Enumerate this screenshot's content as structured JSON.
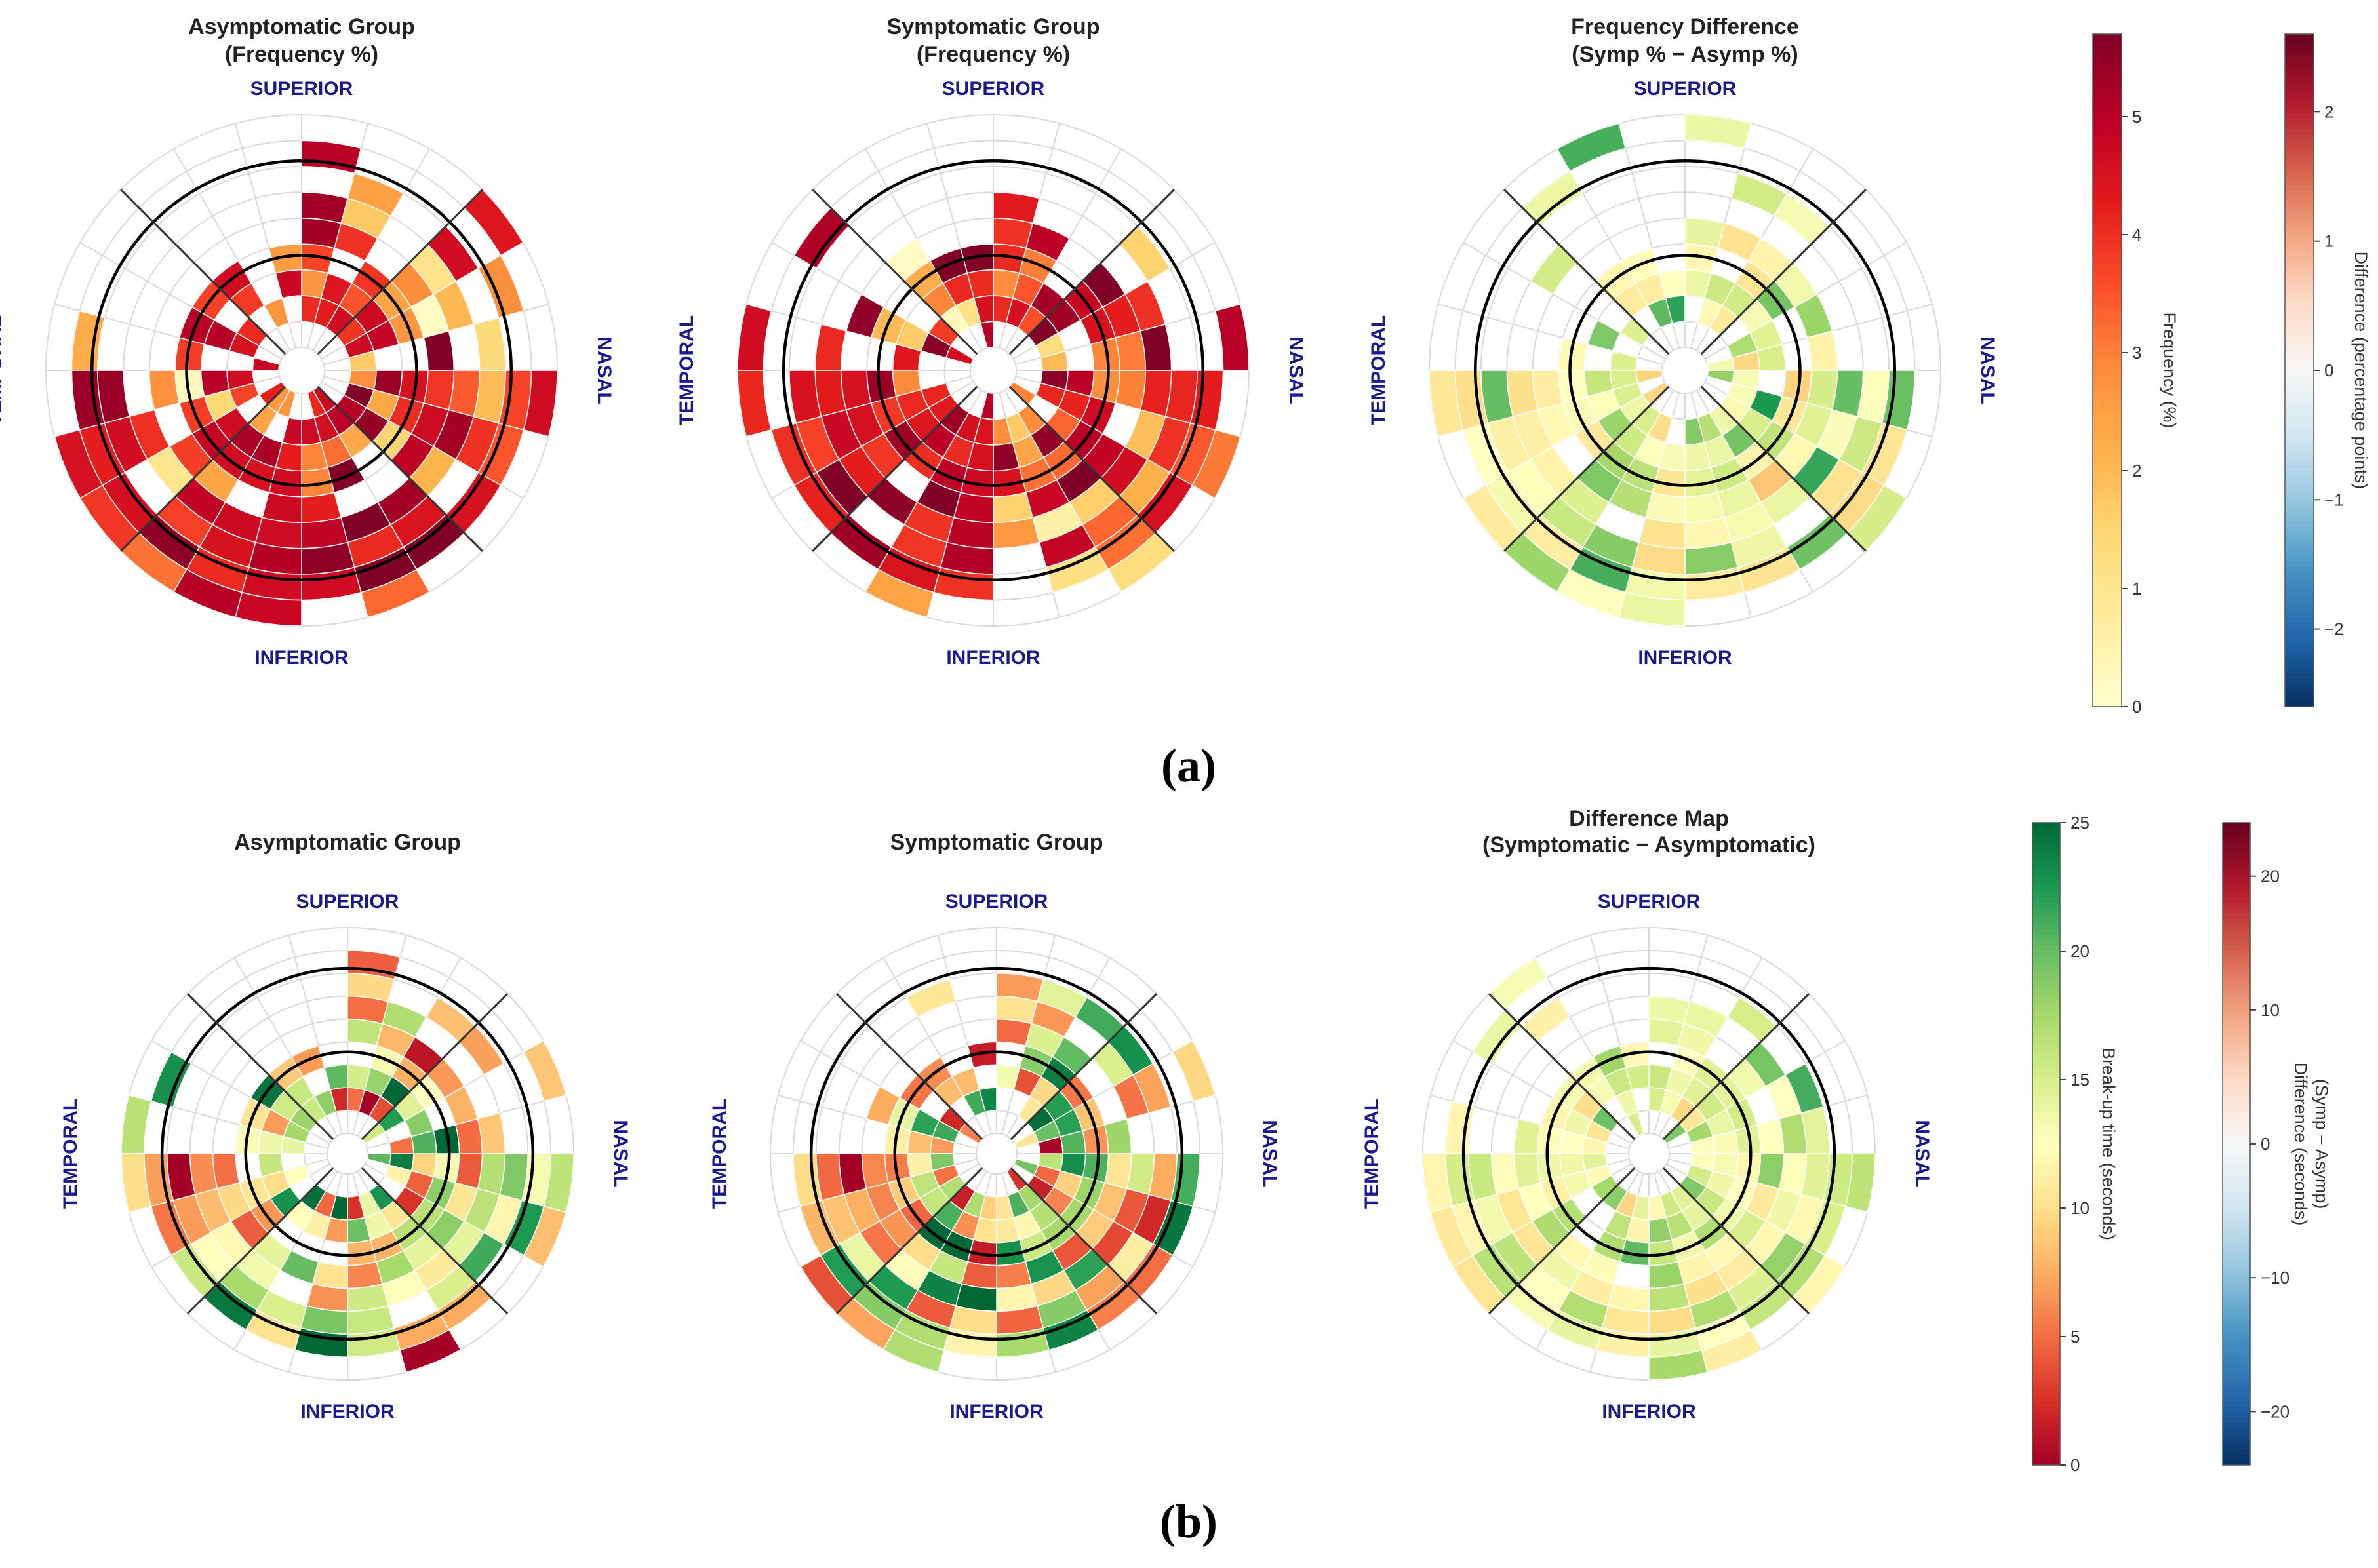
{
  "figure": {
    "row_a_label": "(a)",
    "row_b_label": "(b)"
  },
  "directions": {
    "superior": "SUPERIOR",
    "inferior": "INFERIOR",
    "temporal": "TEMPORAL",
    "nasal": "NASAL"
  },
  "colorbars": {
    "frequency": {
      "label": "Frequency (%)",
      "min": 0,
      "max": 5.7,
      "ticks": [
        0,
        1,
        2,
        3,
        4,
        5
      ],
      "palette": "YlOrRd"
    },
    "freq_difference": {
      "label": "Difference (percentage points)",
      "min": -2.6,
      "max": 2.6,
      "ticks": [
        -2,
        -1,
        0,
        1,
        2
      ],
      "palette": "RdBu_r"
    },
    "breakup_time": {
      "label": "Break-up time (seconds)",
      "min": 0,
      "max": 25,
      "ticks": [
        0,
        5,
        10,
        15,
        20,
        25
      ],
      "palette": "RdYlGn"
    },
    "time_difference": {
      "label_line1": "Difference (seconds)",
      "label_line2": "(Symp − Asymp)",
      "min": -24,
      "max": 24,
      "ticks": [
        -20,
        -10,
        0,
        10,
        20
      ],
      "palette": "RdBu_r"
    }
  },
  "chart_data": [
    {
      "type": "heatmap",
      "subtype": "polar",
      "title_line1": "Asymptomatic Group",
      "title_line2": "(Frequency %)",
      "colorbar": "frequency",
      "rings": 9,
      "sectors": 24,
      "missing": "white",
      "values": [
        "..............NNNN.....N",
        "..............IFNLF....N",
        "..............FAFHFI...F",
        "..............FHFHIJ...F",
        "..............IOCQOJ...F",
        "..............KMAPDJ...F",
        "..............HCIPDJ...F",
        "..............HNAGDJ...F",
        "..............FFAJNJ...F"
      ]
    },
    {
      "type": "heatmap",
      "subtype": "polar",
      "title_line1": "Symptomatic Group",
      "title_line2": "(Frequency %)",
      "colorbar": "frequency",
      "rings": 9,
      "sectors": 24,
      "missing": "white",
      "values": [
        "..........FF..MMMM.....F",
        "..........FF..IMNNFF...F",
        "..........HH..KMGNHF...F",
        "..........HF..KMGIDF...F",
        "..........FF..IMDPMF...F",
        "..........IF..FHIPJF...F",
        "..........HF..HHMPCF...F",
        "..........FF..HNPPFF...F",
        "..........NF..FFPFFF...F"
      ]
    },
    {
      "type": "heatmap",
      "subtype": "polar",
      "title_line1": "Frequency Difference",
      "title_line2": "(Symp % − Asymp %)",
      "colorbar": "freq_difference",
      "rings": 9,
      "sectors": 24,
      "missing": "white",
      "values": [
        "..........FF..MMMM.....H",
        "..........FF..IMNNFH...H",
        "..........HH..KMGNHF...F",
        "..........HF..KMGIDF...F",
        "..........FF..IMDPMF...F",
        "..........IF..FHIPJF...F",
        "..........HF..HHMPCF...F",
        "..........FF..HNPPFF...F",
        "..........NF..FFPFFF...F"
      ]
    },
    {
      "type": "heatmap",
      "subtype": "polar",
      "title_line1": "Asymptomatic Group",
      "title_line2": "",
      "colorbar": "breakup_time",
      "rings": 9,
      "sectors": 24,
      "missing": "white",
      "values": [
        "........................",
        "..........CF..HKJJF.....",
        "..........KH..GJFIJF....",
        "..........JG..FAIHFF....",
        "..........FG..HMAJDF....",
        "..........KF..CMIJDF....",
        "..........HF..HCIJCF....",
        "..........FC..HJAJMF....",
        "..........FF..CFHJFF...."
      ]
    },
    {
      "type": "heatmap",
      "subtype": "polar",
      "title_line1": "Symptomatic Group",
      "title_line2": "",
      "colorbar": "breakup_time",
      "rings": 9,
      "sectors": 24,
      "missing": "white",
      "values": [
        "........................",
        "..........MF..KMNMGF....",
        "..........MH..FMNFHG....",
        "..........KF..FFIHMF....",
        "..........HF..IMFJMF....",
        "..........MF..FHIJCF....",
        "..........HF..KJIMMF....",
        "..........MF..FNMNFF....",
        "..........FF..FMJFFF...."
      ]
    },
    {
      "type": "heatmap",
      "subtype": "polar",
      "title_line1": "Difference Map",
      "title_line2": "(Symptomatic − Asymptomatic)",
      "colorbar": "time_difference",
      "rings": 9,
      "sectors": 24,
      "missing": "white",
      "values": [
        "........................",
        "..........FF..HLFJF.....",
        "..........JH..FFHFF.....",
        "..........HF..FJHHFF....",
        "..........FF..IFJJFF....",
        "..........IF..FHIPHF....",
        "..........HF..HHJHCF....",
        "..........FF..HJMJFF....",
        "..........FF..FFJFFF...."
      ]
    }
  ]
}
